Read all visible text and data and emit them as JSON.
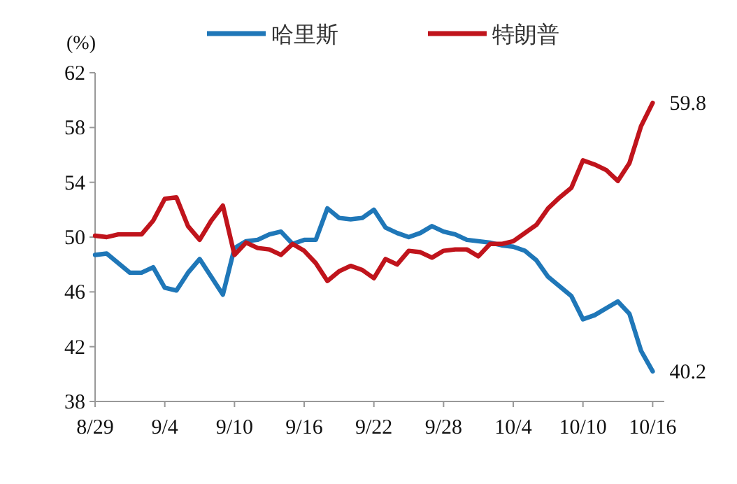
{
  "chart_data": {
    "type": "line",
    "ylabel": "(%)",
    "categories": [
      "8/29",
      null,
      null,
      null,
      null,
      null,
      "9/4",
      null,
      null,
      null,
      null,
      null,
      "9/10",
      null,
      null,
      null,
      null,
      null,
      "9/16",
      null,
      null,
      null,
      null,
      null,
      "9/22",
      null,
      null,
      null,
      null,
      null,
      "9/28",
      null,
      null,
      null,
      null,
      null,
      "10/4",
      null,
      null,
      null,
      null,
      null,
      "10/10",
      null,
      null,
      null,
      null,
      null,
      "10/16"
    ],
    "ylim": [
      38,
      62
    ],
    "yticks": [
      38,
      42,
      46,
      50,
      54,
      58,
      62
    ],
    "legend": "top",
    "series": [
      {
        "name": "哈里斯",
        "color": "#1f77b8",
        "values": [
          48.7,
          48.8,
          48.1,
          47.4,
          47.4,
          47.8,
          46.3,
          46.1,
          47.4,
          48.4,
          47.1,
          45.8,
          49.2,
          49.7,
          49.8,
          50.2,
          50.4,
          49.5,
          49.8,
          49.8,
          52.1,
          51.4,
          51.3,
          51.4,
          52.0,
          50.7,
          50.3,
          50.0,
          50.3,
          50.8,
          50.4,
          50.2,
          49.8,
          49.7,
          49.6,
          49.4,
          49.3,
          49.0,
          48.3,
          47.1,
          46.4,
          45.7,
          44.0,
          44.3,
          44.8,
          45.3,
          44.4,
          41.7,
          40.2
        ]
      },
      {
        "name": "特朗普",
        "color": "#c0141c",
        "values": [
          50.1,
          50.0,
          50.2,
          50.2,
          50.2,
          51.2,
          52.8,
          52.9,
          50.8,
          49.8,
          51.2,
          52.3,
          48.7,
          49.6,
          49.2,
          49.1,
          48.7,
          49.5,
          49.0,
          48.1,
          46.8,
          47.5,
          47.9,
          47.6,
          47.0,
          48.4,
          48.0,
          49.0,
          48.9,
          48.5,
          49.0,
          49.1,
          49.1,
          48.6,
          49.5,
          49.5,
          49.7,
          50.3,
          50.9,
          52.1,
          52.9,
          53.6,
          55.6,
          55.3,
          54.9,
          54.1,
          55.4,
          58.1,
          59.8
        ]
      }
    ],
    "annotations": [
      {
        "text": "59.8",
        "x": "10/16",
        "y": 59.8
      },
      {
        "text": "40.2",
        "x": "10/16",
        "y": 40.2
      }
    ]
  }
}
